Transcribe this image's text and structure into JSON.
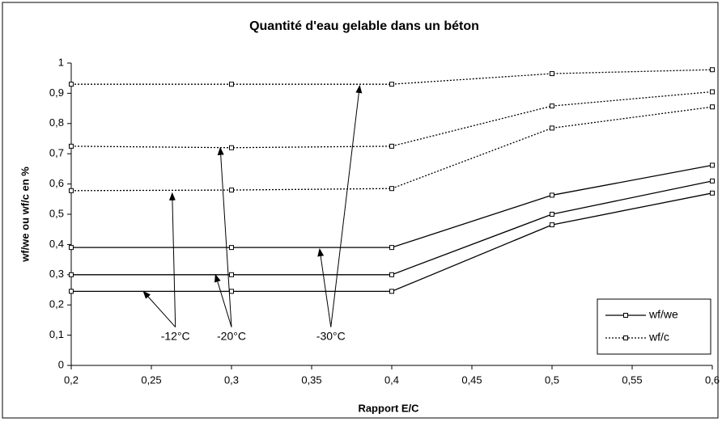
{
  "chart_data": {
    "type": "line",
    "title": "Quantité d'eau gelable dans un béton",
    "x_label": "Rapport E/C",
    "y_label": "wf/we ou wf/c en %",
    "x": [
      0.2,
      0.3,
      0.4,
      0.5,
      0.6
    ],
    "series": [
      {
        "name": "wf/we",
        "color": "#000000",
        "style": "solid",
        "lines": [
          {
            "values": [
              0.245,
              0.245,
              0.245,
              0.465,
              0.57
            ]
          },
          {
            "values": [
              0.3,
              0.3,
              0.3,
              0.5,
              0.61
            ]
          },
          {
            "values": [
              0.39,
              0.39,
              0.39,
              0.563,
              0.662
            ]
          }
        ]
      },
      {
        "name": "wf/c",
        "color": "#000000",
        "style": "dotted",
        "lines": [
          {
            "values": [
              0.578,
              0.58,
              0.585,
              0.785,
              0.855
            ]
          },
          {
            "values": [
              0.725,
              0.72,
              0.725,
              0.858,
              0.905
            ]
          },
          {
            "values": [
              0.93,
              0.93,
              0.93,
              0.965,
              0.978
            ]
          }
        ]
      }
    ],
    "annotations": [
      {
        "text": "-12°C",
        "x": 0.265,
        "y": 0.1,
        "arrows": [
          [
            0.245,
            0.245
          ],
          [
            0.263,
            0.57
          ]
        ]
      },
      {
        "text": "-20°C",
        "x": 0.3,
        "y": 0.1,
        "arrows": [
          [
            0.29,
            0.3
          ],
          [
            0.293,
            0.72
          ]
        ]
      },
      {
        "text": "-30°C",
        "x": 0.362,
        "y": 0.1,
        "arrows": [
          [
            0.355,
            0.385
          ],
          [
            0.38,
            0.925
          ]
        ]
      }
    ],
    "xlim": [
      0.2,
      0.6
    ],
    "xticks": [
      {
        "value": 0.2,
        "label": "0,2"
      },
      {
        "value": 0.25,
        "label": "0,25"
      },
      {
        "value": 0.3,
        "label": "0,3"
      },
      {
        "value": 0.35,
        "label": "0,35"
      },
      {
        "value": 0.4,
        "label": "0,4"
      },
      {
        "value": 0.45,
        "label": "0,45"
      },
      {
        "value": 0.5,
        "label": "0,5"
      },
      {
        "value": 0.55,
        "label": "0,55"
      },
      {
        "value": 0.6,
        "label": "0,6"
      }
    ],
    "ylim": [
      0,
      1
    ],
    "yticks": [
      0,
      {
        "value": 0.1,
        "label": "0,1"
      },
      {
        "value": 0.2,
        "label": "0,2"
      },
      {
        "value": 0.3,
        "label": "0,3"
      },
      {
        "value": 0.4,
        "label": "0,4"
      },
      {
        "value": 0.5,
        "label": "0,5"
      },
      {
        "value": 0.6,
        "label": "0,6"
      },
      {
        "value": 0.7,
        "label": "0,7"
      },
      {
        "value": 0.8,
        "label": "0,8"
      },
      {
        "value": 0.9,
        "label": "0,9"
      },
      1
    ],
    "grid": false,
    "legend": "lower right"
  }
}
